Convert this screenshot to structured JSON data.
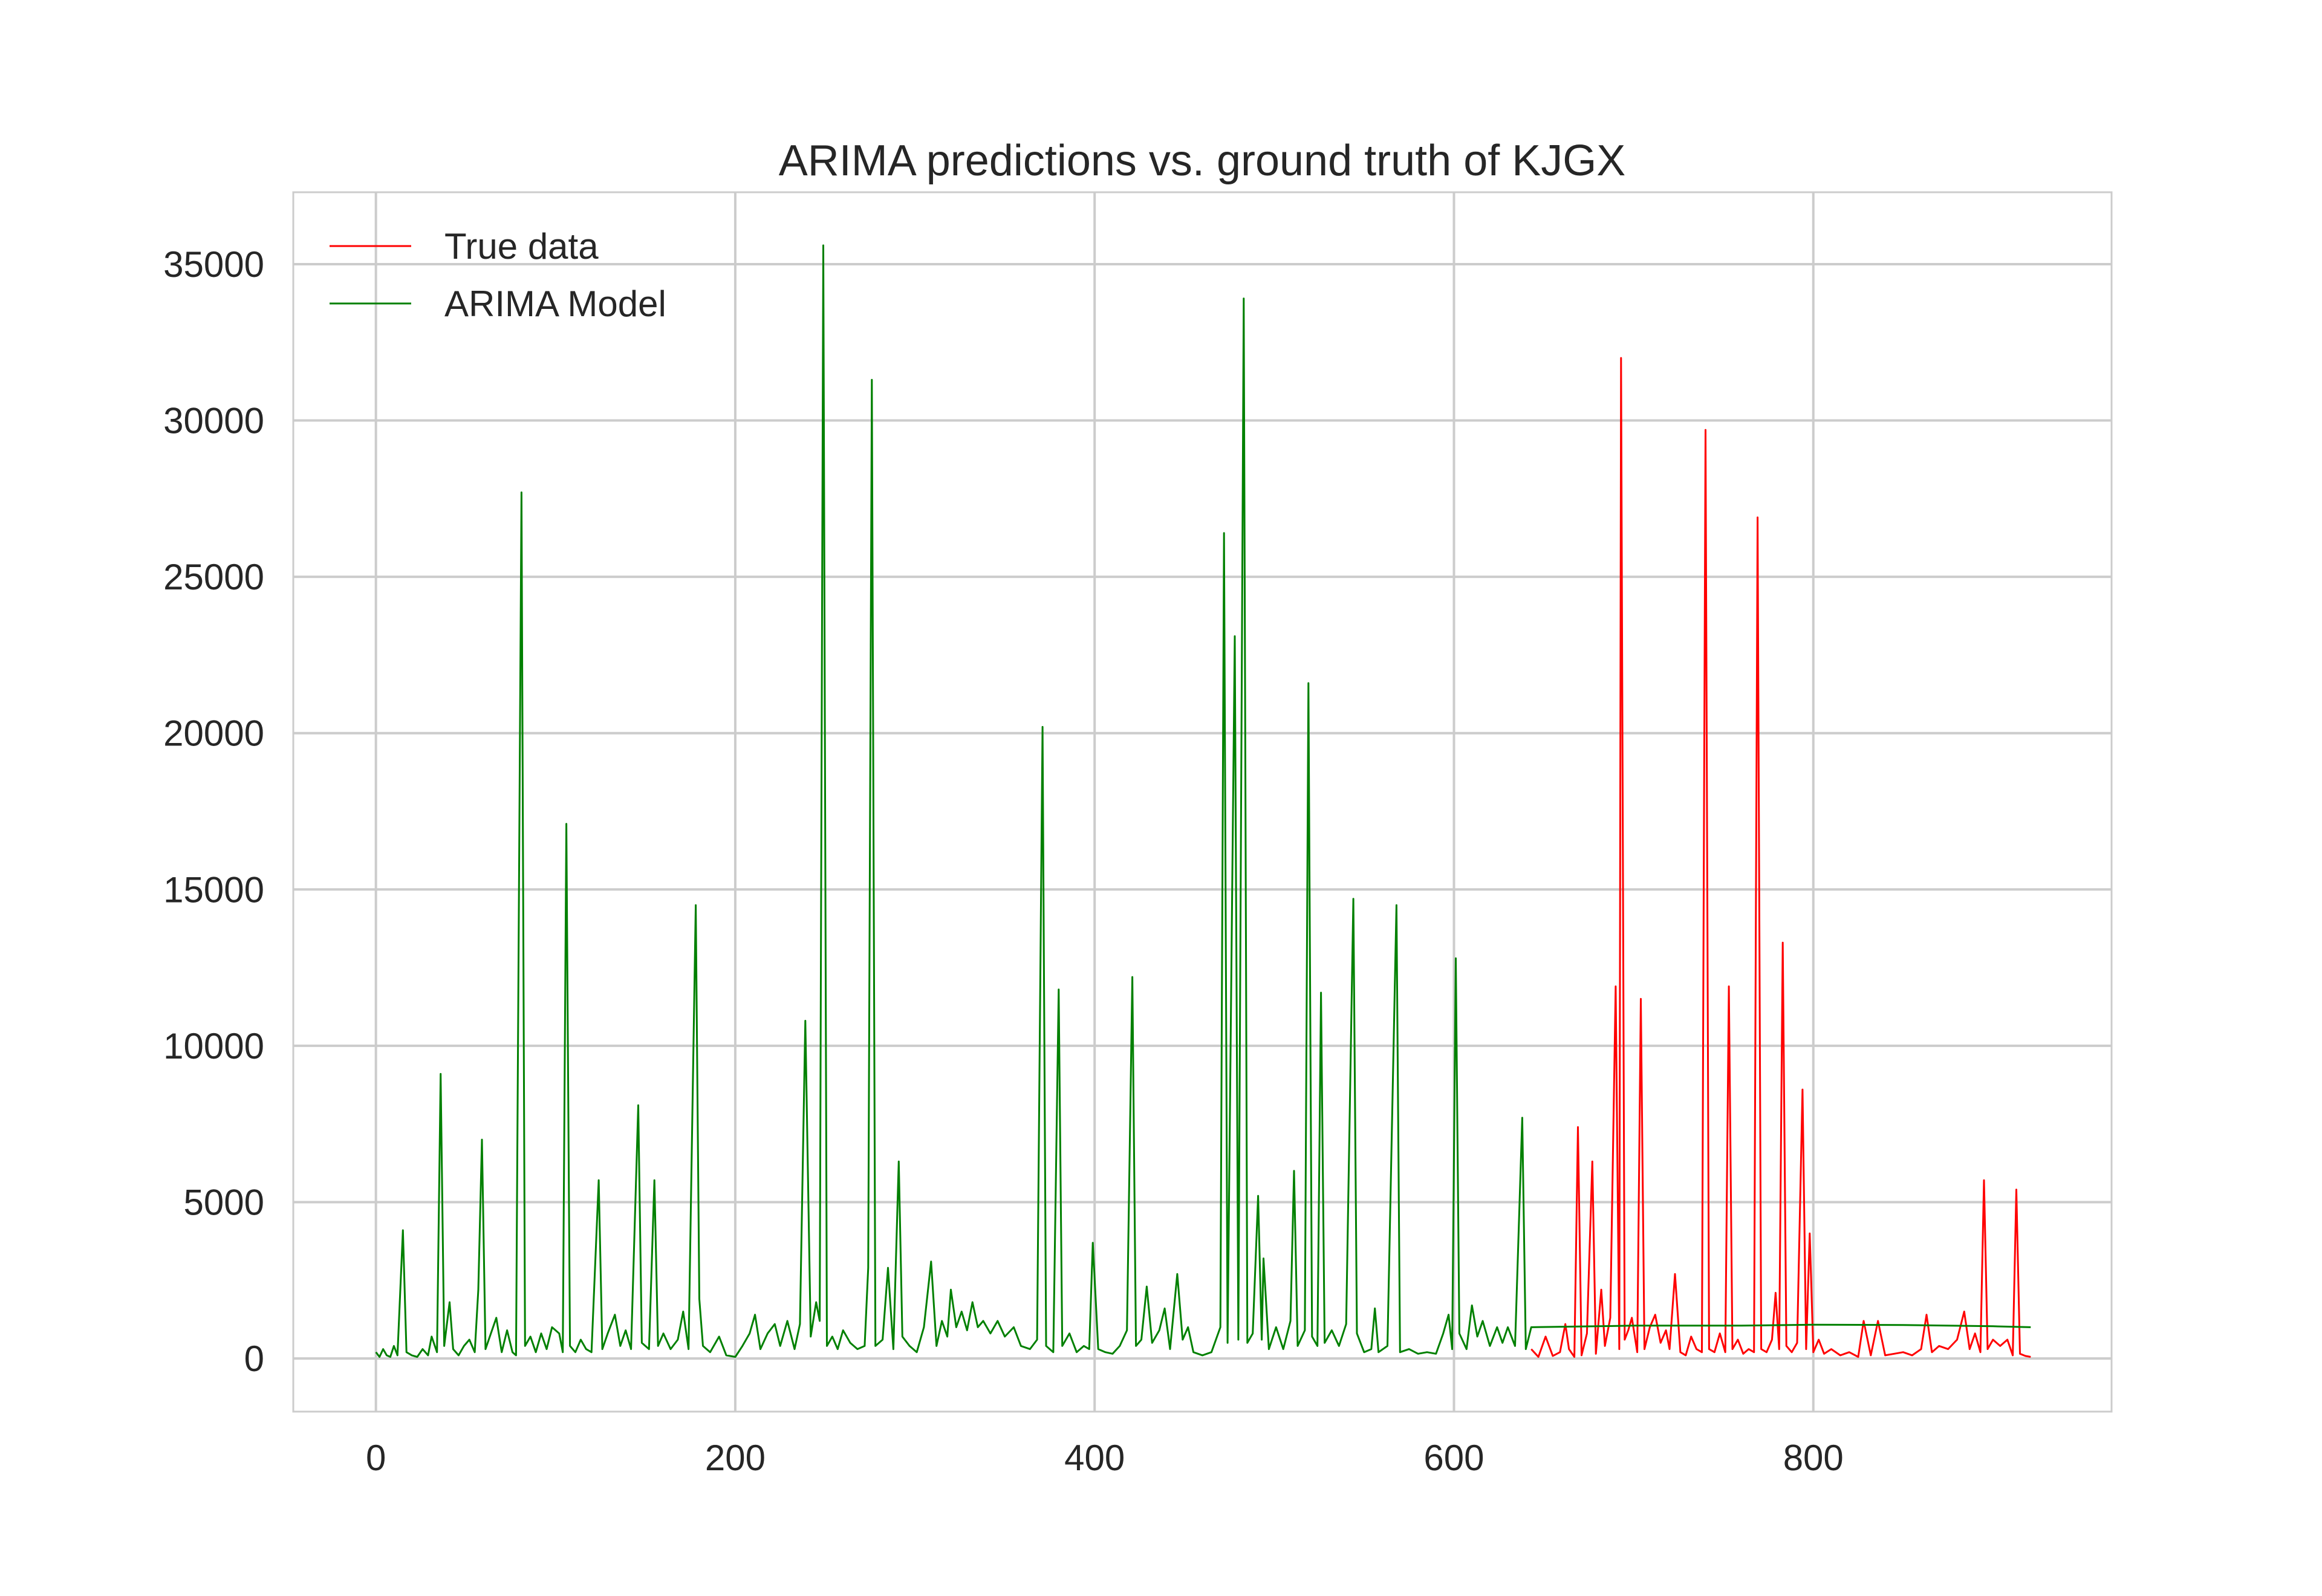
{
  "chart_data": {
    "type": "line",
    "title": "ARIMA predictions vs. ground truth of KJGX",
    "xlabel": "",
    "ylabel": "",
    "xlim": [
      -46,
      966
    ],
    "ylim": [
      -1700,
      37300
    ],
    "xticks": [
      0,
      200,
      400,
      600,
      800
    ],
    "yticks": [
      0,
      5000,
      10000,
      15000,
      20000,
      25000,
      30000,
      35000
    ],
    "grid": true,
    "legend": {
      "placement": "top-left",
      "entries": [
        "True data",
        "ARIMA Model"
      ]
    },
    "series": [
      {
        "name": "True data",
        "color": "#ff0000",
        "points": [
          [
            643,
            300
          ],
          [
            647,
            50
          ],
          [
            651,
            700
          ],
          [
            655,
            80
          ],
          [
            659,
            200
          ],
          [
            662,
            1100
          ],
          [
            664,
            300
          ],
          [
            667,
            50
          ],
          [
            669,
            7400
          ],
          [
            671,
            100
          ],
          [
            674,
            800
          ],
          [
            677,
            6300
          ],
          [
            679,
            150
          ],
          [
            682,
            2200
          ],
          [
            684,
            400
          ],
          [
            687,
            1300
          ],
          [
            690,
            11900
          ],
          [
            692,
            300
          ],
          [
            693,
            32000
          ],
          [
            695,
            600
          ],
          [
            697,
            900
          ],
          [
            699,
            1300
          ],
          [
            702,
            200
          ],
          [
            704,
            11500
          ],
          [
            706,
            300
          ],
          [
            709,
            1000
          ],
          [
            712,
            1400
          ],
          [
            715,
            500
          ],
          [
            718,
            900
          ],
          [
            720,
            300
          ],
          [
            723,
            2700
          ],
          [
            726,
            200
          ],
          [
            729,
            100
          ],
          [
            732,
            700
          ],
          [
            735,
            300
          ],
          [
            738,
            200
          ],
          [
            740,
            29700
          ],
          [
            742,
            300
          ],
          [
            745,
            200
          ],
          [
            748,
            800
          ],
          [
            751,
            200
          ],
          [
            753,
            11900
          ],
          [
            755,
            300
          ],
          [
            758,
            600
          ],
          [
            761,
            150
          ],
          [
            764,
            300
          ],
          [
            767,
            200
          ],
          [
            769,
            26900
          ],
          [
            771,
            300
          ],
          [
            774,
            200
          ],
          [
            777,
            600
          ],
          [
            779,
            2100
          ],
          [
            781,
            300
          ],
          [
            783,
            13300
          ],
          [
            785,
            400
          ],
          [
            788,
            200
          ],
          [
            791,
            500
          ],
          [
            794,
            8600
          ],
          [
            796,
            300
          ],
          [
            798,
            4000
          ],
          [
            800,
            200
          ],
          [
            803,
            600
          ],
          [
            806,
            150
          ],
          [
            810,
            300
          ],
          [
            815,
            100
          ],
          [
            820,
            200
          ],
          [
            825,
            50
          ],
          [
            828,
            1200
          ],
          [
            832,
            100
          ],
          [
            836,
            1200
          ],
          [
            840,
            100
          ],
          [
            845,
            150
          ],
          [
            850,
            200
          ],
          [
            855,
            100
          ],
          [
            860,
            300
          ],
          [
            863,
            1400
          ],
          [
            866,
            200
          ],
          [
            870,
            400
          ],
          [
            875,
            300
          ],
          [
            880,
            600
          ],
          [
            884,
            1500
          ],
          [
            887,
            300
          ],
          [
            890,
            800
          ],
          [
            893,
            200
          ],
          [
            895,
            5700
          ],
          [
            897,
            300
          ],
          [
            900,
            600
          ],
          [
            904,
            400
          ],
          [
            908,
            600
          ],
          [
            911,
            100
          ],
          [
            913,
            5400
          ],
          [
            915,
            150
          ],
          [
            918,
            80
          ],
          [
            921,
            50
          ]
        ]
      },
      {
        "name": "ARIMA Model",
        "color": "#008000",
        "points": [
          [
            0,
            200
          ],
          [
            2,
            50
          ],
          [
            4,
            300
          ],
          [
            6,
            100
          ],
          [
            8,
            50
          ],
          [
            10,
            400
          ],
          [
            12,
            100
          ],
          [
            15,
            4100
          ],
          [
            17,
            200
          ],
          [
            20,
            100
          ],
          [
            23,
            50
          ],
          [
            26,
            300
          ],
          [
            29,
            100
          ],
          [
            31,
            700
          ],
          [
            34,
            200
          ],
          [
            36,
            9100
          ],
          [
            38,
            400
          ],
          [
            41,
            1800
          ],
          [
            43,
            300
          ],
          [
            46,
            100
          ],
          [
            49,
            400
          ],
          [
            52,
            600
          ],
          [
            55,
            200
          ],
          [
            57,
            2200
          ],
          [
            59,
            7000
          ],
          [
            61,
            300
          ],
          [
            64,
            800
          ],
          [
            67,
            1300
          ],
          [
            70,
            200
          ],
          [
            73,
            900
          ],
          [
            76,
            200
          ],
          [
            78,
            100
          ],
          [
            81,
            27700
          ],
          [
            83,
            400
          ],
          [
            86,
            700
          ],
          [
            89,
            200
          ],
          [
            92,
            800
          ],
          [
            95,
            300
          ],
          [
            98,
            1000
          ],
          [
            102,
            800
          ],
          [
            104,
            200
          ],
          [
            106,
            17100
          ],
          [
            108,
            400
          ],
          [
            111,
            200
          ],
          [
            114,
            600
          ],
          [
            117,
            300
          ],
          [
            120,
            200
          ],
          [
            124,
            5700
          ],
          [
            126,
            300
          ],
          [
            129,
            800
          ],
          [
            133,
            1400
          ],
          [
            136,
            400
          ],
          [
            139,
            900
          ],
          [
            142,
            300
          ],
          [
            146,
            8100
          ],
          [
            148,
            500
          ],
          [
            152,
            300
          ],
          [
            155,
            5700
          ],
          [
            157,
            400
          ],
          [
            160,
            800
          ],
          [
            164,
            300
          ],
          [
            168,
            600
          ],
          [
            171,
            1500
          ],
          [
            174,
            300
          ],
          [
            178,
            14500
          ],
          [
            180,
            1900
          ],
          [
            182,
            400
          ],
          [
            186,
            200
          ],
          [
            191,
            700
          ],
          [
            195,
            100
          ],
          [
            200,
            50
          ],
          [
            204,
            400
          ],
          [
            208,
            800
          ],
          [
            211,
            1400
          ],
          [
            214,
            300
          ],
          [
            218,
            800
          ],
          [
            222,
            1100
          ],
          [
            225,
            400
          ],
          [
            229,
            1200
          ],
          [
            233,
            300
          ],
          [
            236,
            1100
          ],
          [
            239,
            10800
          ],
          [
            242,
            700
          ],
          [
            245,
            1800
          ],
          [
            247,
            1200
          ],
          [
            249,
            35600
          ],
          [
            251,
            400
          ],
          [
            254,
            700
          ],
          [
            257,
            300
          ],
          [
            260,
            900
          ],
          [
            264,
            500
          ],
          [
            268,
            300
          ],
          [
            272,
            400
          ],
          [
            274,
            2900
          ],
          [
            276,
            31300
          ],
          [
            278,
            400
          ],
          [
            282,
            600
          ],
          [
            285,
            2900
          ],
          [
            288,
            300
          ],
          [
            291,
            6300
          ],
          [
            293,
            700
          ],
          [
            297,
            400
          ],
          [
            301,
            200
          ],
          [
            305,
            1000
          ],
          [
            309,
            3100
          ],
          [
            312,
            400
          ],
          [
            315,
            1200
          ],
          [
            318,
            700
          ],
          [
            320,
            2200
          ],
          [
            323,
            1000
          ],
          [
            326,
            1500
          ],
          [
            329,
            900
          ],
          [
            332,
            1800
          ],
          [
            335,
            1000
          ],
          [
            338,
            1200
          ],
          [
            342,
            800
          ],
          [
            346,
            1200
          ],
          [
            350,
            700
          ],
          [
            355,
            1000
          ],
          [
            359,
            400
          ],
          [
            364,
            300
          ],
          [
            368,
            600
          ],
          [
            371,
            20200
          ],
          [
            373,
            400
          ],
          [
            377,
            200
          ],
          [
            380,
            11800
          ],
          [
            382,
            400
          ],
          [
            386,
            800
          ],
          [
            390,
            200
          ],
          [
            394,
            400
          ],
          [
            397,
            300
          ],
          [
            399,
            3700
          ],
          [
            402,
            300
          ],
          [
            406,
            200
          ],
          [
            410,
            150
          ],
          [
            414,
            400
          ],
          [
            418,
            900
          ],
          [
            421,
            12200
          ],
          [
            423,
            400
          ],
          [
            426,
            600
          ],
          [
            429,
            2300
          ],
          [
            432,
            500
          ],
          [
            436,
            900
          ],
          [
            439,
            1600
          ],
          [
            442,
            300
          ],
          [
            446,
            2700
          ],
          [
            449,
            600
          ],
          [
            452,
            1000
          ],
          [
            455,
            200
          ],
          [
            460,
            100
          ],
          [
            465,
            200
          ],
          [
            470,
            1000
          ],
          [
            472,
            26400
          ],
          [
            474,
            500
          ],
          [
            478,
            23100
          ],
          [
            480,
            600
          ],
          [
            483,
            33900
          ],
          [
            485,
            500
          ],
          [
            488,
            800
          ],
          [
            491,
            5200
          ],
          [
            493,
            600
          ],
          [
            494,
            3200
          ],
          [
            497,
            300
          ],
          [
            501,
            1000
          ],
          [
            505,
            300
          ],
          [
            509,
            1200
          ],
          [
            511,
            6000
          ],
          [
            513,
            400
          ],
          [
            517,
            900
          ],
          [
            519,
            21600
          ],
          [
            521,
            700
          ],
          [
            524,
            400
          ],
          [
            526,
            11700
          ],
          [
            528,
            500
          ],
          [
            532,
            900
          ],
          [
            536,
            400
          ],
          [
            540,
            1100
          ],
          [
            544,
            14700
          ],
          [
            546,
            800
          ],
          [
            550,
            200
          ],
          [
            554,
            300
          ],
          [
            556,
            1600
          ],
          [
            558,
            200
          ],
          [
            563,
            400
          ],
          [
            568,
            14500
          ],
          [
            570,
            200
          ],
          [
            575,
            300
          ],
          [
            580,
            150
          ],
          [
            585,
            200
          ],
          [
            590,
            150
          ],
          [
            594,
            800
          ],
          [
            597,
            1400
          ],
          [
            599,
            300
          ],
          [
            601,
            12800
          ],
          [
            603,
            800
          ],
          [
            607,
            300
          ],
          [
            610,
            1700
          ],
          [
            613,
            700
          ],
          [
            616,
            1200
          ],
          [
            620,
            400
          ],
          [
            624,
            1000
          ],
          [
            627,
            500
          ],
          [
            630,
            1000
          ],
          [
            634,
            400
          ],
          [
            638,
            7700
          ],
          [
            640,
            300
          ],
          [
            643,
            1000
          ],
          [
            700,
            1050
          ],
          [
            760,
            1050
          ],
          [
            800,
            1080
          ],
          [
            850,
            1070
          ],
          [
            900,
            1030
          ],
          [
            921,
            1000
          ]
        ]
      }
    ]
  }
}
